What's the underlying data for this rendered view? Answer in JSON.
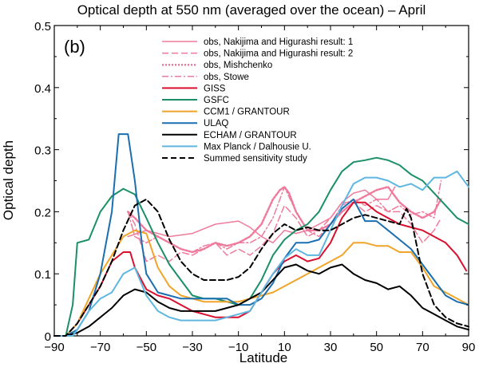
{
  "chart_data": {
    "type": "line",
    "title": "Optical depth at 550 nm (averaged over the ocean) – April",
    "panel_label": "(b)",
    "xlabel": "Latitude",
    "ylabel": "Optical depth",
    "xlim": [
      -90,
      90
    ],
    "ylim": [
      0,
      0.5
    ],
    "x_ticks": [
      -90,
      -70,
      -50,
      -30,
      -10,
      10,
      30,
      50,
      70,
      90
    ],
    "y_ticks": [
      0,
      0.1,
      0.2,
      0.3,
      0.4,
      0.5
    ],
    "y_tick_labels": [
      "0",
      "0.1",
      "0.2",
      "0.3",
      "0.4",
      "0.5"
    ],
    "grid": false,
    "legend_position": "top-right",
    "series": [
      {
        "name": "obs, Nakijima and Higurashi result: 1",
        "color": "#f07a9c",
        "dash": "solid",
        "width": 1.5,
        "x": [
          -58,
          -50,
          -40,
          -30,
          -20,
          -10,
          -5,
          0,
          5,
          10,
          15,
          20,
          25,
          30,
          35,
          40,
          45,
          50,
          55,
          58
        ],
        "y": [
          0.16,
          0.17,
          0.16,
          0.165,
          0.18,
          0.185,
          0.175,
          0.16,
          0.15,
          0.17,
          0.165,
          0.17,
          0.18,
          0.19,
          0.215,
          0.23,
          0.235,
          0.22,
          0.22,
          0.24
        ]
      },
      {
        "name": "obs, Nakijima and Higurashi result: 2",
        "color": "#f07a9c",
        "dash": "8,4",
        "width": 1.5,
        "x": [
          -58,
          -55,
          -50,
          -45,
          -40,
          -35,
          -30,
          -25,
          -20,
          -15,
          -10,
          -5,
          0,
          5,
          10,
          15,
          20,
          25,
          30,
          35,
          40,
          45,
          50,
          55,
          60,
          65,
          70,
          75,
          78
        ],
        "y": [
          0.2,
          0.18,
          0.12,
          0.13,
          0.12,
          0.135,
          0.13,
          0.14,
          0.15,
          0.13,
          0.14,
          0.13,
          0.145,
          0.165,
          0.21,
          0.19,
          0.16,
          0.17,
          0.19,
          0.215,
          0.215,
          0.2,
          0.21,
          0.2,
          0.2,
          0.18,
          0.15,
          0.17,
          0.19
        ]
      },
      {
        "name": "obs, Mishchenko",
        "color": "#f07a9c",
        "dash": "2,2",
        "width": 2.5,
        "x": [
          -58,
          -55,
          -50,
          -45,
          -40,
          -35,
          -30,
          -25,
          -20,
          -15,
          -10,
          -5,
          0,
          5,
          8,
          10,
          12,
          15,
          20,
          25,
          30,
          35,
          40,
          45,
          50,
          55,
          60,
          65,
          70,
          75,
          78
        ],
        "y": [
          0.2,
          0.19,
          0.17,
          0.16,
          0.15,
          0.14,
          0.135,
          0.14,
          0.15,
          0.145,
          0.15,
          0.16,
          0.18,
          0.22,
          0.235,
          0.24,
          0.23,
          0.2,
          0.17,
          0.17,
          0.18,
          0.2,
          0.215,
          0.225,
          0.235,
          0.24,
          0.215,
          0.2,
          0.19,
          0.2,
          0.22
        ]
      },
      {
        "name": "obs, Stowe",
        "color": "#f07a9c",
        "dash": "8,3,2,3",
        "width": 1.5,
        "x": [
          -58,
          -55,
          -50,
          -45,
          -40,
          -35,
          -30,
          -25,
          -20,
          -15,
          -10,
          -5,
          0,
          5,
          10,
          15,
          20,
          25,
          30,
          35,
          40,
          45,
          50,
          55,
          60,
          65,
          70,
          75,
          78
        ],
        "y": [
          0.2,
          0.16,
          0.15,
          0.16,
          0.15,
          0.14,
          0.135,
          0.145,
          0.15,
          0.14,
          0.15,
          0.15,
          0.16,
          0.19,
          0.24,
          0.2,
          0.17,
          0.16,
          0.18,
          0.21,
          0.22,
          0.21,
          0.22,
          0.2,
          0.21,
          0.195,
          0.2,
          0.19,
          0.25
        ]
      },
      {
        "name": "GISS",
        "color": "#d9102e",
        "dash": "solid",
        "width": 2,
        "x": [
          -90,
          -85,
          -80,
          -75,
          -70,
          -65,
          -60,
          -57,
          -55,
          -50,
          -45,
          -40,
          -35,
          -30,
          -25,
          -20,
          -15,
          -10,
          -5,
          0,
          5,
          10,
          15,
          20,
          25,
          30,
          35,
          40,
          45,
          50,
          55,
          60,
          65,
          70,
          75,
          80,
          85,
          89
        ],
        "y": [
          0,
          0,
          0.02,
          0.05,
          0.08,
          0.12,
          0.135,
          0.135,
          0.11,
          0.075,
          0.065,
          0.06,
          0.05,
          0.04,
          0.035,
          0.03,
          0.03,
          0.03,
          0.04,
          0.07,
          0.1,
          0.12,
          0.13,
          0.12,
          0.125,
          0.15,
          0.19,
          0.215,
          0.215,
          0.2,
          0.19,
          0.18,
          0.175,
          0.17,
          0.16,
          0.15,
          0.13,
          0.105
        ]
      },
      {
        "name": "GSFC",
        "color": "#1b9067",
        "dash": "solid",
        "width": 2,
        "x": [
          -90,
          -87,
          -85,
          -82,
          -80,
          -75,
          -70,
          -65,
          -60,
          -55,
          -50,
          -45,
          -40,
          -35,
          -30,
          -25,
          -20,
          -15,
          -10,
          -5,
          0,
          5,
          10,
          15,
          20,
          25,
          30,
          35,
          40,
          45,
          50,
          55,
          60,
          65,
          70,
          75,
          80,
          85,
          90
        ],
        "y": [
          0,
          0,
          0,
          0.05,
          0.15,
          0.155,
          0.2,
          0.225,
          0.237,
          0.228,
          0.19,
          0.15,
          0.115,
          0.09,
          0.065,
          0.06,
          0.06,
          0.055,
          0.05,
          0.06,
          0.09,
          0.13,
          0.155,
          0.17,
          0.18,
          0.2,
          0.235,
          0.265,
          0.28,
          0.283,
          0.287,
          0.283,
          0.275,
          0.26,
          0.25,
          0.23,
          0.21,
          0.19,
          0.18
        ]
      },
      {
        "name": "CCM1 / GRANTOUR",
        "color": "#f0a52a",
        "dash": "solid",
        "width": 2,
        "x": [
          -90,
          -85,
          -80,
          -75,
          -70,
          -65,
          -60,
          -55,
          -50,
          -45,
          -40,
          -35,
          -30,
          -25,
          -20,
          -15,
          -10,
          -5,
          0,
          5,
          10,
          15,
          20,
          25,
          30,
          35,
          40,
          45,
          50,
          55,
          60,
          65,
          70,
          75,
          80,
          85,
          90
        ],
        "y": [
          0,
          0,
          0.02,
          0.06,
          0.1,
          0.13,
          0.16,
          0.17,
          0.165,
          0.11,
          0.08,
          0.065,
          0.06,
          0.055,
          0.055,
          0.055,
          0.055,
          0.06,
          0.065,
          0.07,
          0.08,
          0.09,
          0.1,
          0.11,
          0.12,
          0.13,
          0.15,
          0.15,
          0.145,
          0.145,
          0.135,
          0.135,
          0.11,
          0.08,
          0.07,
          0.06,
          0.05
        ]
      },
      {
        "name": "ULAQ",
        "color": "#1a6fb0",
        "dash": "solid",
        "width": 2,
        "x": [
          -90,
          -85,
          -80,
          -75,
          -70,
          -65,
          -62,
          -58,
          -55,
          -52,
          -50,
          -45,
          -40,
          -35,
          -30,
          -25,
          -20,
          -15,
          -10,
          -5,
          0,
          5,
          10,
          15,
          20,
          25,
          30,
          35,
          40,
          45,
          50,
          55,
          60,
          65,
          70,
          75,
          80,
          85,
          90
        ],
        "y": [
          0,
          0,
          0.01,
          0.04,
          0.1,
          0.2,
          0.325,
          0.325,
          0.25,
          0.15,
          0.1,
          0.07,
          0.065,
          0.06,
          0.06,
          0.06,
          0.06,
          0.06,
          0.05,
          0.05,
          0.06,
          0.085,
          0.125,
          0.15,
          0.15,
          0.155,
          0.18,
          0.205,
          0.22,
          0.185,
          0.185,
          0.17,
          0.155,
          0.14,
          0.115,
          0.09,
          0.065,
          0.055,
          0.05
        ]
      },
      {
        "name": "ECHAM / GRANTOUR",
        "color": "#000000",
        "dash": "solid",
        "width": 2,
        "x": [
          -90,
          -85,
          -80,
          -75,
          -70,
          -65,
          -60,
          -55,
          -50,
          -45,
          -40,
          -35,
          -30,
          -25,
          -20,
          -15,
          -10,
          -5,
          0,
          5,
          10,
          15,
          20,
          25,
          30,
          35,
          40,
          45,
          50,
          55,
          60,
          65,
          70,
          75,
          80,
          85,
          90
        ],
        "y": [
          0,
          0,
          0.005,
          0.015,
          0.03,
          0.045,
          0.065,
          0.075,
          0.07,
          0.055,
          0.045,
          0.04,
          0.04,
          0.04,
          0.04,
          0.045,
          0.05,
          0.06,
          0.07,
          0.09,
          0.11,
          0.115,
          0.105,
          0.1,
          0.11,
          0.115,
          0.1,
          0.09,
          0.085,
          0.075,
          0.08,
          0.065,
          0.045,
          0.035,
          0.025,
          0.015,
          0.01
        ]
      },
      {
        "name": "Max Planck / Dalhousie U.",
        "color": "#5fb6e0",
        "dash": "solid",
        "width": 2,
        "x": [
          -90,
          -85,
          -82,
          -80,
          -75,
          -70,
          -65,
          -60,
          -55,
          -50,
          -45,
          -40,
          -35,
          -30,
          -25,
          -20,
          -15,
          -10,
          -5,
          0,
          5,
          10,
          15,
          20,
          25,
          30,
          35,
          40,
          45,
          50,
          55,
          60,
          65,
          70,
          75,
          80,
          85,
          90
        ],
        "y": [
          0,
          0,
          0,
          0.01,
          0.04,
          0.06,
          0.07,
          0.1,
          0.11,
          0.065,
          0.04,
          0.03,
          0.025,
          0.025,
          0.025,
          0.025,
          0.03,
          0.035,
          0.04,
          0.07,
          0.1,
          0.125,
          0.14,
          0.13,
          0.13,
          0.17,
          0.21,
          0.245,
          0.255,
          0.255,
          0.25,
          0.24,
          0.245,
          0.235,
          0.255,
          0.255,
          0.265,
          0.24
        ]
      },
      {
        "name": "Summed sensitivity study",
        "color": "#000000",
        "dash": "7,4",
        "width": 2,
        "x": [
          -90,
          -87,
          -85,
          -80,
          -75,
          -70,
          -65,
          -60,
          -55,
          -50,
          -45,
          -40,
          -35,
          -30,
          -25,
          -20,
          -15,
          -10,
          -5,
          0,
          5,
          10,
          15,
          20,
          25,
          30,
          35,
          40,
          45,
          50,
          55,
          60,
          63,
          65,
          70,
          75,
          80,
          85,
          90
        ],
        "y": [
          0,
          0,
          0,
          0.02,
          0.05,
          0.08,
          0.12,
          0.17,
          0.21,
          0.22,
          0.2,
          0.155,
          0.12,
          0.1,
          0.09,
          0.09,
          0.09,
          0.095,
          0.11,
          0.14,
          0.165,
          0.18,
          0.17,
          0.175,
          0.17,
          0.17,
          0.18,
          0.19,
          0.195,
          0.19,
          0.185,
          0.18,
          0.205,
          0.19,
          0.1,
          0.05,
          0.03,
          0.02,
          0.015
        ]
      }
    ]
  }
}
